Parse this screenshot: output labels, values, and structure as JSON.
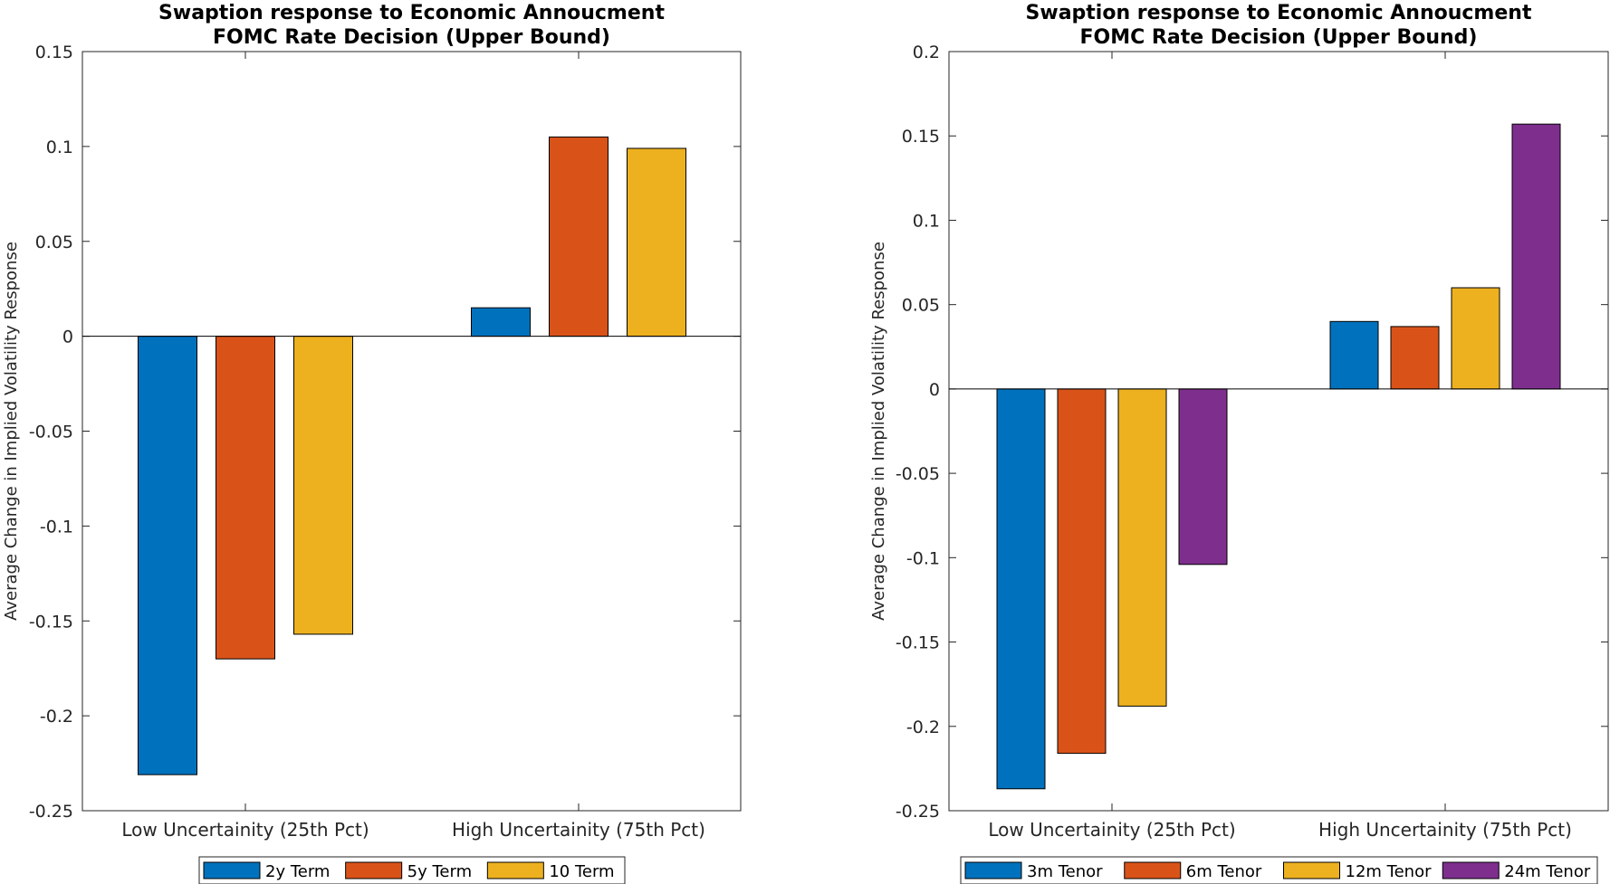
{
  "chart_data": [
    {
      "type": "bar",
      "title": "Swaption response to Economic Annoucment",
      "subtitle": "FOMC Rate Decision (Upper Bound)",
      "xlabel": "",
      "ylabel": "Average Change in Implied Volatility Response",
      "categories": [
        "Low Uncertainity (25th Pct)",
        "High Uncertainity (75th Pct)"
      ],
      "ylim": [
        -0.25,
        0.15
      ],
      "yticks": [
        -0.25,
        -0.2,
        -0.15,
        -0.1,
        -0.05,
        0,
        0.05,
        0.1,
        0.15
      ],
      "ytick_labels": [
        "-0.25",
        "-0.2",
        "-0.15",
        "-0.1",
        "-0.05",
        "0",
        "0.05",
        "0.1",
        "0.15"
      ],
      "grid": false,
      "legend_position": "bottom-outside",
      "series": [
        {
          "name": "2y Term",
          "color": "#0072BD",
          "values": [
            -0.231,
            0.015
          ]
        },
        {
          "name": "5y Term",
          "color": "#D95319",
          "values": [
            -0.17,
            0.105
          ]
        },
        {
          "name": "10 Term",
          "color": "#EDB120",
          "values": [
            -0.157,
            0.099
          ]
        }
      ]
    },
    {
      "type": "bar",
      "title": "Swaption response to Economic Annoucment",
      "subtitle": "FOMC Rate Decision (Upper Bound)",
      "xlabel": "",
      "ylabel": "Average Change in Implied Volatility Response",
      "categories": [
        "Low Uncertainity (25th Pct)",
        "High Uncertainity (75th Pct)"
      ],
      "ylim": [
        -0.25,
        0.2
      ],
      "yticks": [
        -0.25,
        -0.2,
        -0.15,
        -0.1,
        -0.05,
        0,
        0.05,
        0.1,
        0.15,
        0.2
      ],
      "ytick_labels": [
        "-0.25",
        "-0.2",
        "-0.15",
        "-0.1",
        "-0.05",
        "0",
        "0.05",
        "0.1",
        "0.15",
        "0.2"
      ],
      "grid": false,
      "legend_position": "bottom-outside",
      "series": [
        {
          "name": "3m Tenor",
          "color": "#0072BD",
          "values": [
            -0.237,
            0.04
          ]
        },
        {
          "name": "6m Tenor",
          "color": "#D95319",
          "values": [
            -0.216,
            0.037
          ]
        },
        {
          "name": "12m Tenor",
          "color": "#EDB120",
          "values": [
            -0.188,
            0.06
          ]
        },
        {
          "name": "24m Tenor",
          "color": "#7E2F8E",
          "values": [
            -0.104,
            0.157
          ]
        }
      ]
    }
  ]
}
